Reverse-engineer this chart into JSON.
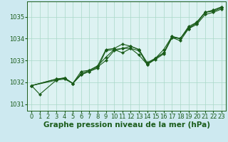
{
  "background_color": "#cde9f0",
  "plot_bg_color": "#ddf2f2",
  "grid_color": "#a8d8c8",
  "line_color": "#1a5c1a",
  "marker_color": "#1a5c1a",
  "xlabel": "Graphe pression niveau de la mer (hPa)",
  "xlabel_fontsize": 7.5,
  "tick_fontsize": 6,
  "xlim": [
    -0.5,
    23.5
  ],
  "ylim": [
    1030.7,
    1035.7
  ],
  "yticks": [
    1031,
    1032,
    1033,
    1034,
    1035
  ],
  "xticks": [
    0,
    1,
    2,
    3,
    4,
    5,
    6,
    7,
    8,
    9,
    10,
    11,
    12,
    13,
    14,
    15,
    16,
    17,
    18,
    19,
    20,
    21,
    22,
    23
  ],
  "lines": [
    {
      "x": [
        0,
        1,
        3,
        4,
        5,
        6,
        7,
        8,
        9,
        10,
        11,
        12,
        13,
        14,
        15,
        16,
        17,
        18,
        19,
        20,
        21,
        22,
        23
      ],
      "y": [
        1031.85,
        1031.45,
        1032.1,
        1032.15,
        1031.95,
        1032.35,
        1032.5,
        1032.65,
        1033.45,
        1033.5,
        1033.35,
        1033.55,
        1033.25,
        1032.82,
        1033.05,
        1033.3,
        1034.05,
        1033.9,
        1034.45,
        1034.65,
        1035.1,
        1035.2,
        1035.35
      ]
    },
    {
      "x": [
        0,
        3,
        4,
        5,
        6,
        7,
        8,
        9,
        10,
        11,
        12,
        13,
        14,
        15,
        16,
        17,
        18,
        19,
        20,
        21,
        22,
        23
      ],
      "y": [
        1031.85,
        1032.1,
        1032.2,
        1031.95,
        1032.4,
        1032.55,
        1032.75,
        1033.5,
        1033.55,
        1033.75,
        1033.65,
        1033.5,
        1032.9,
        1033.1,
        1033.35,
        1034.1,
        1034.0,
        1034.55,
        1034.75,
        1035.2,
        1035.3,
        1035.45
      ]
    },
    {
      "x": [
        0,
        3,
        4,
        5,
        6,
        7,
        8,
        9,
        10,
        11,
        12,
        13,
        14,
        15,
        16,
        17,
        18,
        19,
        20,
        21,
        22,
        23
      ],
      "y": [
        1031.85,
        1032.15,
        1032.2,
        1031.95,
        1032.35,
        1032.5,
        1032.7,
        1033.0,
        1033.45,
        1033.55,
        1033.55,
        1033.45,
        1032.85,
        1033.1,
        1033.35,
        1034.05,
        1034.0,
        1034.5,
        1034.7,
        1035.2,
        1035.25,
        1035.4
      ]
    },
    {
      "x": [
        0,
        3,
        4,
        5,
        6,
        7,
        8,
        9,
        10,
        11,
        12,
        13,
        14,
        15,
        16,
        17,
        18,
        19,
        20,
        21,
        22,
        23
      ],
      "y": [
        1031.85,
        1032.15,
        1032.2,
        1031.95,
        1032.5,
        1032.55,
        1032.75,
        1033.15,
        1033.5,
        1033.55,
        1033.65,
        1033.5,
        1032.8,
        1033.1,
        1033.5,
        1034.1,
        1034.0,
        1034.45,
        1034.75,
        1035.2,
        1035.3,
        1035.45
      ]
    }
  ]
}
